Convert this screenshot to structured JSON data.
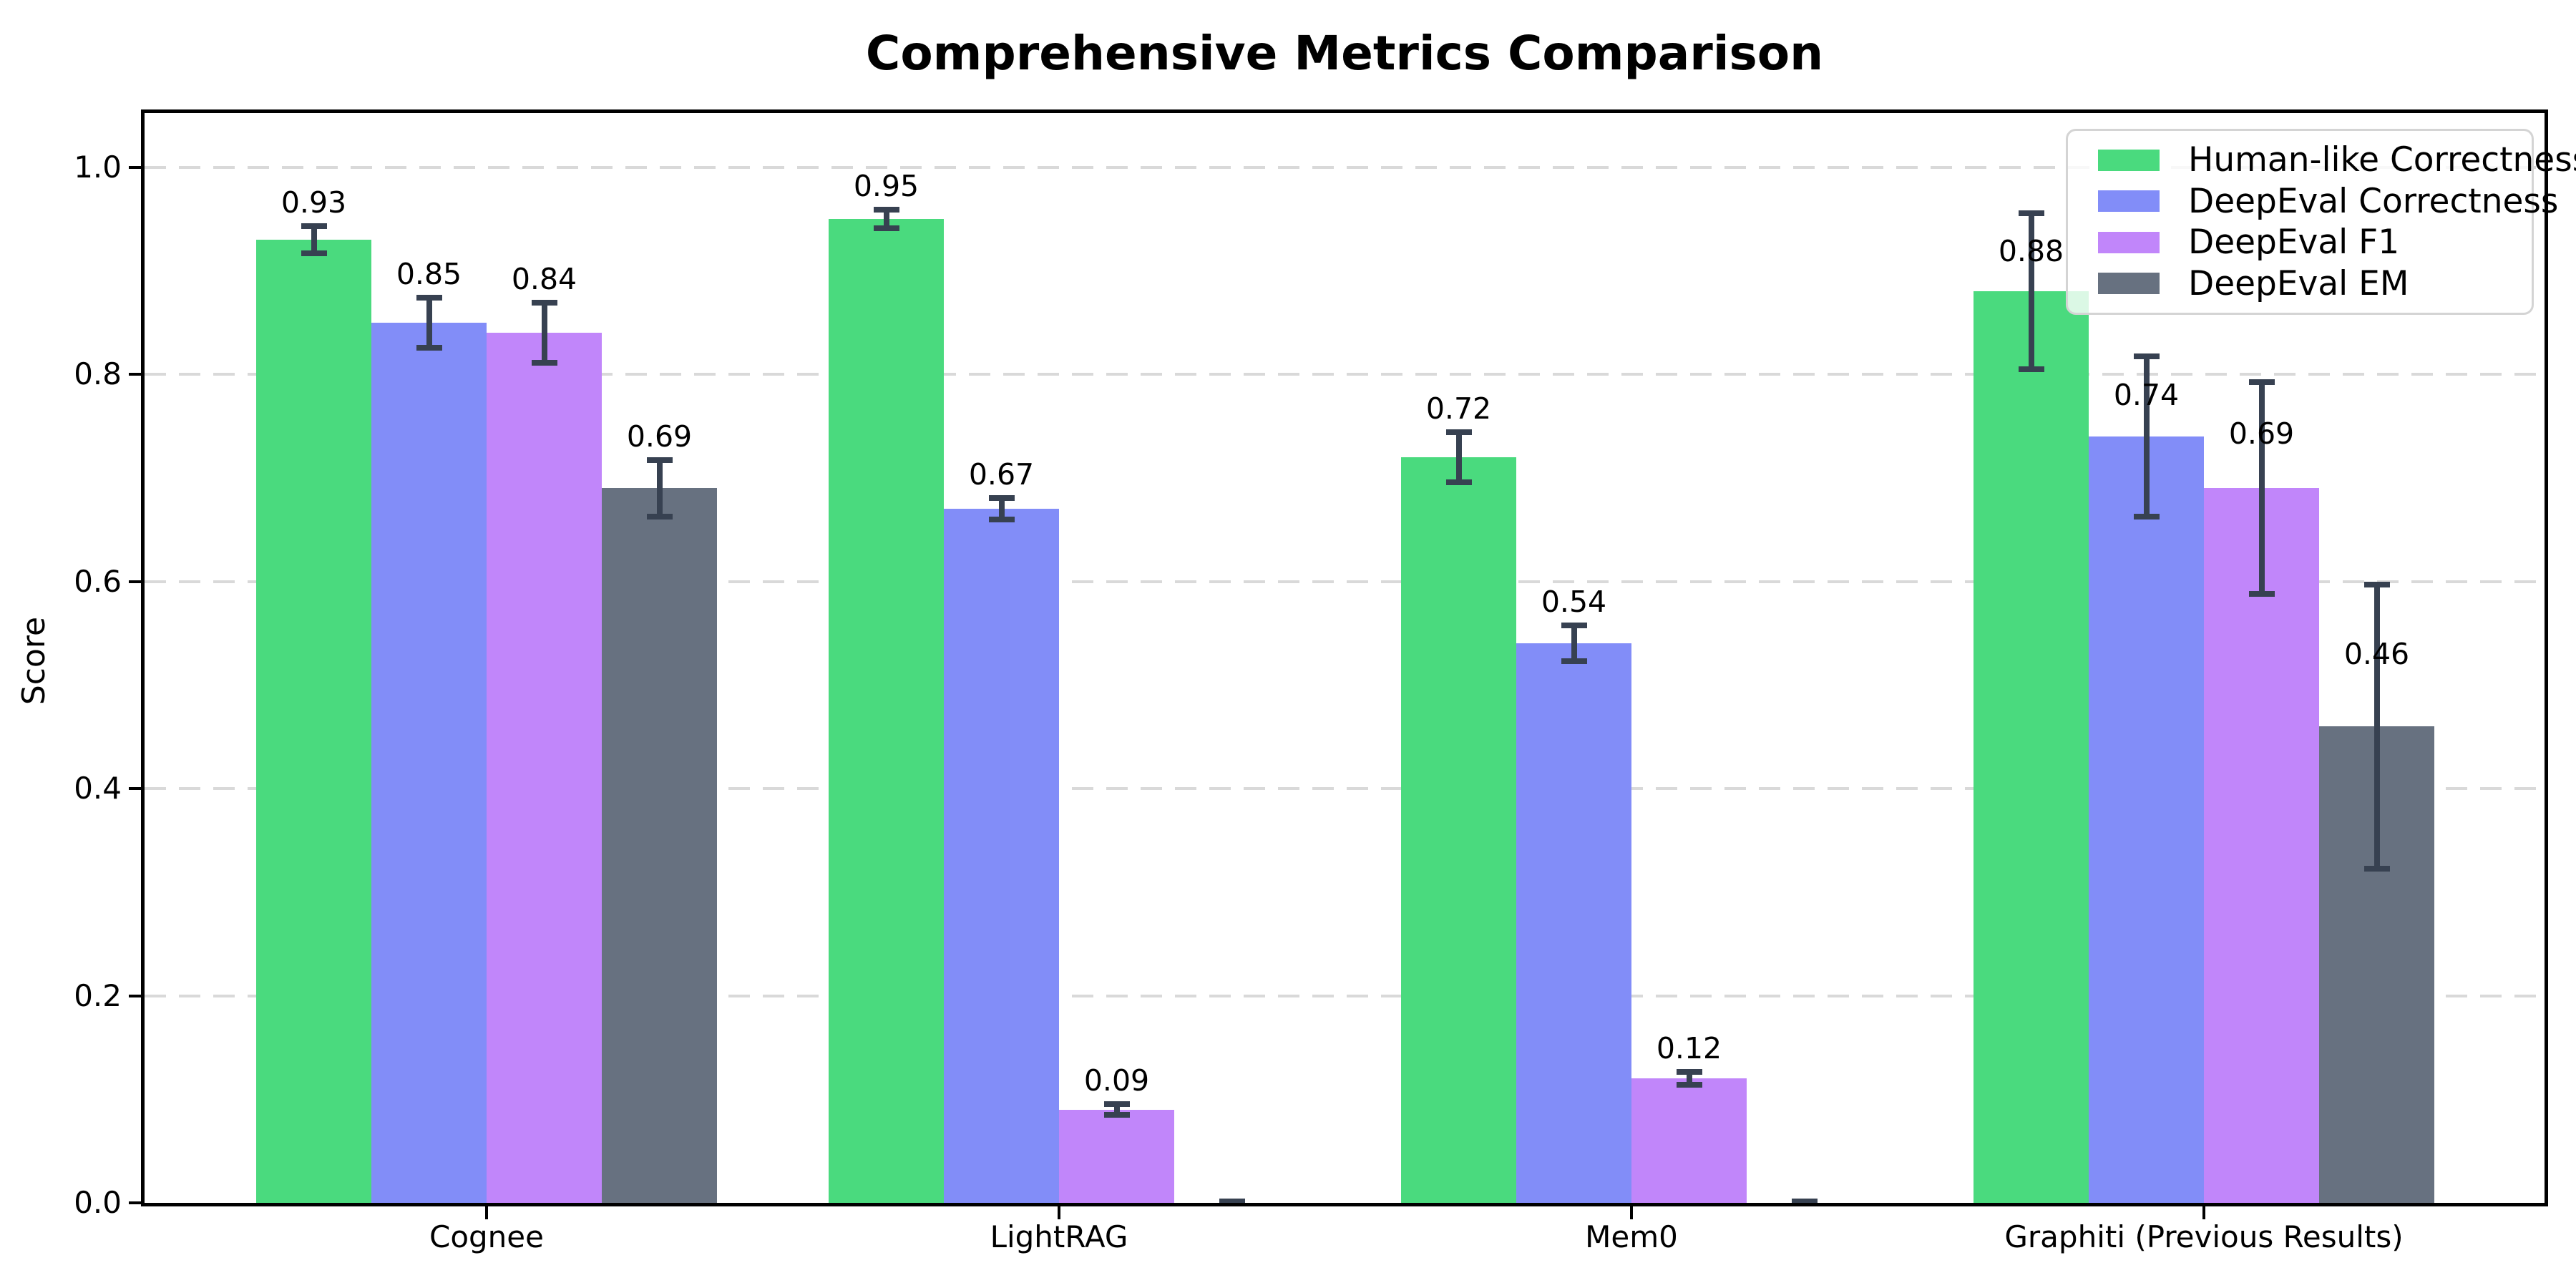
{
  "title": "Comprehensive Metrics Comparison",
  "ylabel": "Score",
  "chart_data": {
    "type": "bar",
    "title": "Comprehensive Metrics Comparison",
    "ylabel": "Score",
    "xlabel": "",
    "categories": [
      "Cognee",
      "LightRAG",
      "Mem0",
      "Graphiti (Previous Results)"
    ],
    "series": [
      {
        "name": "Human-like Correctness",
        "color": "#4ada7e",
        "values": [
          0.93,
          0.95,
          0.72,
          0.88
        ],
        "errors": [
          0.016,
          0.012,
          0.027,
          0.078
        ],
        "labels": [
          "0.93",
          "0.95",
          "0.72",
          "0.88"
        ]
      },
      {
        "name": "DeepEval Correctness",
        "color": "#828df8",
        "values": [
          0.85,
          0.67,
          0.54,
          0.74
        ],
        "errors": [
          0.027,
          0.013,
          0.02,
          0.08
        ],
        "labels": [
          "0.85",
          "0.67",
          "0.54",
          "0.74"
        ]
      },
      {
        "name": "DeepEval F1",
        "color": "#c186fa",
        "values": [
          0.84,
          0.09,
          0.12,
          0.69
        ],
        "errors": [
          0.032,
          0.008,
          0.009,
          0.105
        ],
        "labels": [
          "0.84",
          "0.09",
          "0.12",
          "0.69"
        ]
      },
      {
        "name": "DeepEval EM",
        "color": "#677180",
        "values": [
          0.69,
          0.0,
          0.0,
          0.46
        ],
        "errors": [
          0.03,
          0.004,
          0.004,
          0.14
        ],
        "labels": [
          "0.69",
          "",
          "",
          "0.46"
        ]
      }
    ],
    "yticks": [
      0.0,
      0.2,
      0.4,
      0.6,
      0.8,
      1.0
    ],
    "ytick_labels": [
      "0.0",
      "0.2",
      "0.4",
      "0.6",
      "0.8",
      "1.0"
    ],
    "ylim": [
      0,
      1.052
    ],
    "grid": "horizontal dashed",
    "legend_position": "upper right",
    "error_bars": true
  },
  "style": {
    "background": "#ffffff",
    "errorbar_color": "#374151",
    "grid_color": "#d9d9d9",
    "spine_color": "#000000",
    "legend_border_color": "#d4d4d4",
    "text_color": "#000000"
  }
}
